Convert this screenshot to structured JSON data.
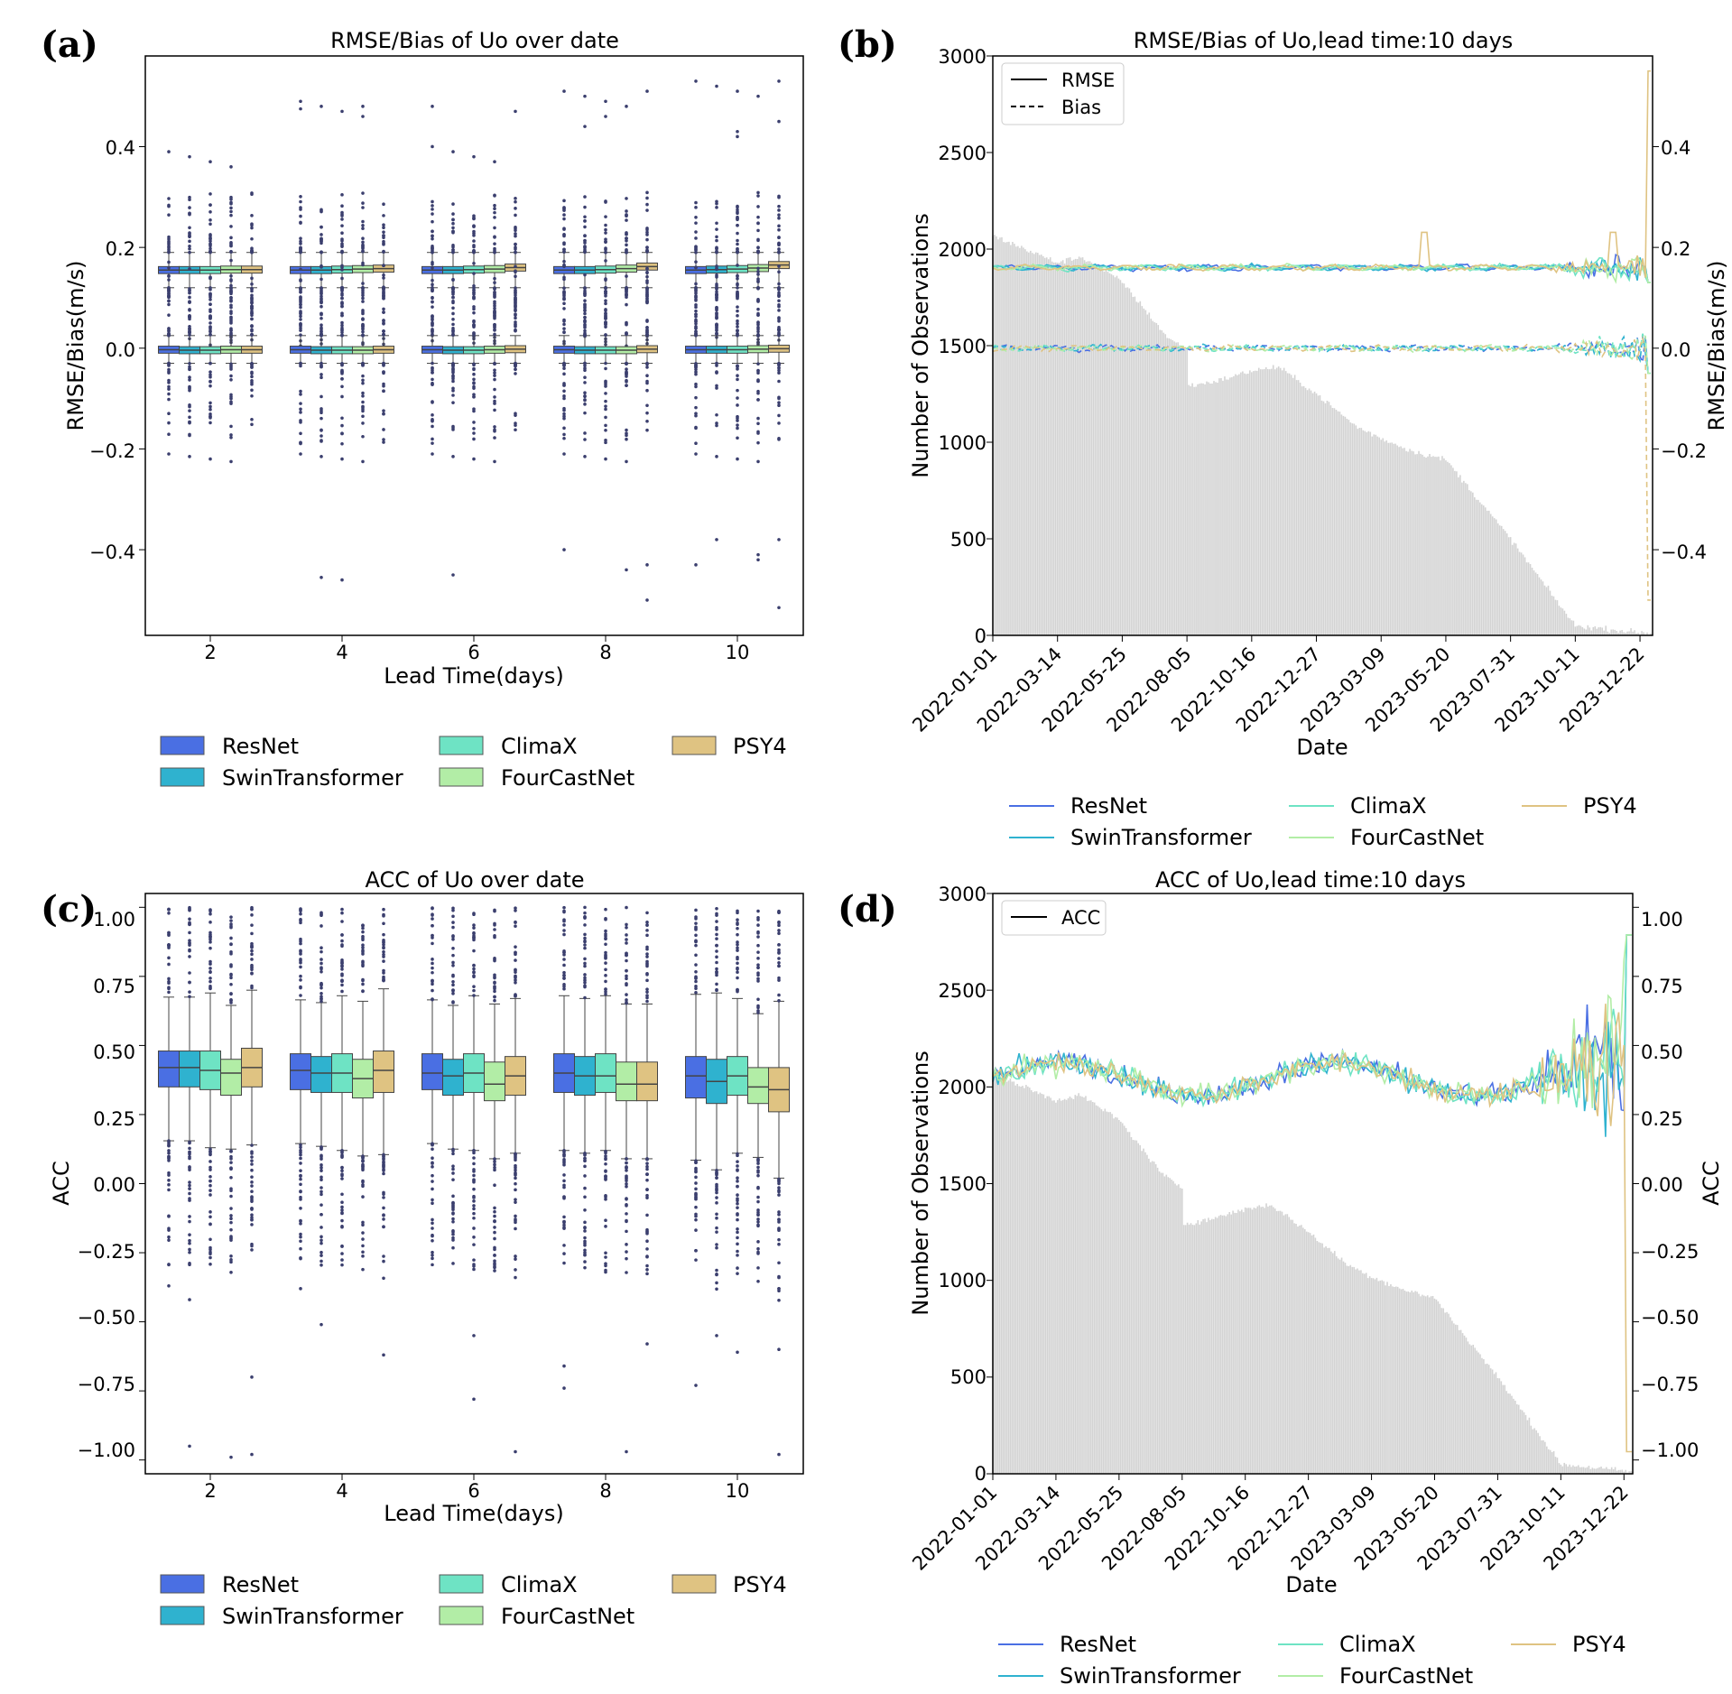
{
  "colors": {
    "ResNet": "#4a6fe3",
    "SwinTransformer": "#2fb2cf",
    "ClimaX": "#6ee3c4",
    "FourCastNet": "#b2eda6",
    "PSY4": "#dfc382",
    "bars": "#dcdcdc",
    "outlier": "#3b3f6e"
  },
  "legend_models": [
    "ResNet",
    "SwinTransformer",
    "ClimaX",
    "FourCastNet",
    "PSY4"
  ],
  "panels": {
    "a": {
      "letter": "(a)",
      "title": "RMSE/Bias of Uo over date",
      "xlabel": "Lead Time(days)",
      "ylabel": "RMSE/Bias(m/s)",
      "xticks": [
        "2",
        "4",
        "6",
        "8",
        "10"
      ],
      "yticks": [
        "0.4",
        "0.2",
        "0.0",
        "−0.2",
        "−0.4"
      ]
    },
    "b": {
      "letter": "(b)",
      "title": "RMSE/Bias of Uo,lead time:10 days",
      "xlabel": "Date",
      "ylabel_left": "Number of Observations",
      "ylabel_right": "RMSE/Bias(m/s)",
      "yticks_left": [
        "3000",
        "2500",
        "2000",
        "1500",
        "1000",
        "500",
        "0"
      ],
      "yticks_right": [
        "0.4",
        "0.2",
        "0.0",
        "−0.2",
        "−0.4"
      ],
      "line_legend": [
        "RMSE",
        "Bias"
      ]
    },
    "c": {
      "letter": "(c)",
      "title": "ACC of Uo over date",
      "xlabel": "Lead Time(days)",
      "ylabel": "ACC",
      "xticks": [
        "2",
        "4",
        "6",
        "8",
        "10"
      ],
      "yticks": [
        "1.00",
        "0.75",
        "0.50",
        "0.25",
        "0.00",
        "−0.25",
        "−0.50",
        "−0.75",
        "−1.00"
      ]
    },
    "d": {
      "letter": "(d)",
      "title": "ACC of Uo,lead time:10 days",
      "xlabel": "Date",
      "ylabel_left": "Number of Observations",
      "ylabel_right": "ACC",
      "yticks_left": [
        "3000",
        "2500",
        "2000",
        "1500",
        "1000",
        "500",
        "0"
      ],
      "yticks_right": [
        "1.00",
        "0.75",
        "0.50",
        "0.25",
        "0.00",
        "−0.25",
        "−0.50",
        "−0.75",
        "−1.00"
      ],
      "line_legend": [
        "ACC"
      ]
    }
  },
  "date_ticks": [
    "2022-01-01",
    "2022-03-14",
    "2022-05-25",
    "2022-08-05",
    "2022-10-16",
    "2022-12-27",
    "2023-03-09",
    "2023-05-20",
    "2023-07-31",
    "2023-10-11",
    "2023-12-22"
  ],
  "chart_data": [
    {
      "type": "box",
      "panel": "a",
      "title": "RMSE/Bias of Uo over date",
      "xlabel": "Lead Time(days)",
      "ylabel": "RMSE/Bias(m/s)",
      "ylim": [
        -0.57,
        0.58
      ],
      "categories": [
        2,
        4,
        6,
        8,
        10
      ],
      "metrics": {
        "RMSE": {
          "medians": {
            "ResNet": [
              0.155,
              0.155,
              0.155,
              0.155,
              0.155
            ],
            "SwinTransformer": [
              0.155,
              0.155,
              0.155,
              0.155,
              0.156
            ],
            "ClimaX": [
              0.155,
              0.156,
              0.156,
              0.156,
              0.157
            ],
            "FourCastNet": [
              0.156,
              0.157,
              0.157,
              0.158,
              0.159
            ],
            "PSY4": [
              0.156,
              0.158,
              0.16,
              0.162,
              0.165
            ]
          },
          "whisker_low": 0.12,
          "whisker_high": 0.19
        },
        "Bias": {
          "medians": {
            "ResNet": [
              -0.003,
              -0.003,
              -0.003,
              -0.003,
              -0.003
            ],
            "SwinTransformer": [
              -0.004,
              -0.004,
              -0.004,
              -0.004,
              -0.003
            ],
            "ClimaX": [
              -0.004,
              -0.004,
              -0.004,
              -0.004,
              -0.003
            ],
            "FourCastNet": [
              -0.003,
              -0.004,
              -0.003,
              -0.004,
              -0.002
            ],
            "PSY4": [
              -0.003,
              -0.003,
              -0.002,
              -0.002,
              -0.001
            ]
          },
          "whisker_low": -0.03,
          "whisker_high": 0.025
        }
      },
      "outlier_extremes": {
        "2": [
          0.39,
          -0.22
        ],
        "4": [
          0.49,
          -0.47
        ],
        "6": [
          0.4,
          -0.22
        ],
        "8": [
          0.51,
          -0.5
        ],
        "10": [
          0.53,
          -0.52
        ]
      }
    },
    {
      "type": "bar+line",
      "panel": "b",
      "title": "RMSE/Bias of Uo,lead time:10 days",
      "xlabel": "Date",
      "ylabel_left": "Number of Observations",
      "ylabel_right": "RMSE/Bias(m/s)",
      "ylim_left": [
        0,
        3000
      ],
      "ylim_right": [
        -0.57,
        0.58
      ],
      "x_range": [
        "2022-01-01",
        "2024-01-05"
      ],
      "observations_keypoints": [
        [
          "2022-01-01",
          2070
        ],
        [
          "2022-03-14",
          1930
        ],
        [
          "2022-04-10",
          1960
        ],
        [
          "2022-05-25",
          1830
        ],
        [
          "2022-07-15",
          1540
        ],
        [
          "2022-08-05",
          1480
        ],
        [
          "2022-08-06",
          1290
        ],
        [
          "2022-09-10",
          1320
        ],
        [
          "2022-10-16",
          1370
        ],
        [
          "2022-11-15",
          1390
        ],
        [
          "2022-12-27",
          1250
        ],
        [
          "2023-02-10",
          1080
        ],
        [
          "2023-03-09",
          1020
        ],
        [
          "2023-04-15",
          950
        ],
        [
          "2023-05-20",
          910
        ],
        [
          "2023-07-31",
          500
        ],
        [
          "2023-09-20",
          180
        ],
        [
          "2023-10-11",
          50
        ],
        [
          "2023-12-22",
          15
        ],
        [
          "2024-01-05",
          10
        ]
      ],
      "rmse_level": 0.16,
      "bias_level": 0.0,
      "series": [
        {
          "name": "ResNet",
          "metric": "RMSE/Bias"
        },
        {
          "name": "SwinTransformer",
          "metric": "RMSE/Bias"
        },
        {
          "name": "ClimaX",
          "metric": "RMSE/Bias"
        },
        {
          "name": "FourCastNet",
          "metric": "RMSE/Bias"
        },
        {
          "name": "PSY4",
          "metric": "RMSE/Bias"
        }
      ],
      "legend_lines": [
        "RMSE",
        "Bias"
      ],
      "legend_models": [
        "ResNet",
        "SwinTransformer",
        "ClimaX",
        "FourCastNet",
        "PSY4"
      ]
    },
    {
      "type": "box",
      "panel": "c",
      "title": "ACC of Uo over date",
      "xlabel": "Lead Time(days)",
      "ylabel": "ACC",
      "ylim": [
        -1.05,
        1.05
      ],
      "categories": [
        2,
        4,
        6,
        8,
        10
      ],
      "boxes": {
        "ResNet": [
          [
            0.35,
            0.42,
            0.48
          ],
          [
            0.34,
            0.41,
            0.47
          ],
          [
            0.34,
            0.4,
            0.47
          ],
          [
            0.33,
            0.4,
            0.47
          ],
          [
            0.31,
            0.39,
            0.46
          ]
        ],
        "SwinTransformer": [
          [
            0.35,
            0.42,
            0.48
          ],
          [
            0.33,
            0.4,
            0.46
          ],
          [
            0.32,
            0.39,
            0.45
          ],
          [
            0.32,
            0.39,
            0.46
          ],
          [
            0.29,
            0.37,
            0.45
          ]
        ],
        "ClimaX": [
          [
            0.34,
            0.41,
            0.48
          ],
          [
            0.33,
            0.4,
            0.47
          ],
          [
            0.33,
            0.4,
            0.47
          ],
          [
            0.33,
            0.39,
            0.47
          ],
          [
            0.32,
            0.39,
            0.46
          ]
        ],
        "FourCastNet": [
          [
            0.32,
            0.4,
            0.45
          ],
          [
            0.31,
            0.38,
            0.45
          ],
          [
            0.3,
            0.36,
            0.44
          ],
          [
            0.3,
            0.36,
            0.44
          ],
          [
            0.29,
            0.35,
            0.42
          ]
        ],
        "PSY4": [
          [
            0.35,
            0.42,
            0.49
          ],
          [
            0.33,
            0.41,
            0.48
          ],
          [
            0.32,
            0.39,
            0.46
          ],
          [
            0.3,
            0.36,
            0.44
          ],
          [
            0.26,
            0.34,
            0.42
          ]
        ]
      }
    },
    {
      "type": "bar+line",
      "panel": "d",
      "title": "ACC of Uo,lead time:10 days",
      "xlabel": "Date",
      "ylabel_left": "Number of Observations",
      "ylabel_right": "ACC",
      "ylim_left": [
        0,
        3000
      ],
      "ylim_right": [
        -1.05,
        1.05
      ],
      "x_range": [
        "2022-01-01",
        "2024-01-01"
      ],
      "acc_level": 0.38,
      "series": [
        {
          "name": "ResNet"
        },
        {
          "name": "SwinTransformer"
        },
        {
          "name": "ClimaX"
        },
        {
          "name": "FourCastNet"
        },
        {
          "name": "PSY4"
        }
      ],
      "legend_lines": [
        "ACC"
      ],
      "legend_models": [
        "ResNet",
        "SwinTransformer",
        "ClimaX",
        "FourCastNet",
        "PSY4"
      ]
    }
  ]
}
